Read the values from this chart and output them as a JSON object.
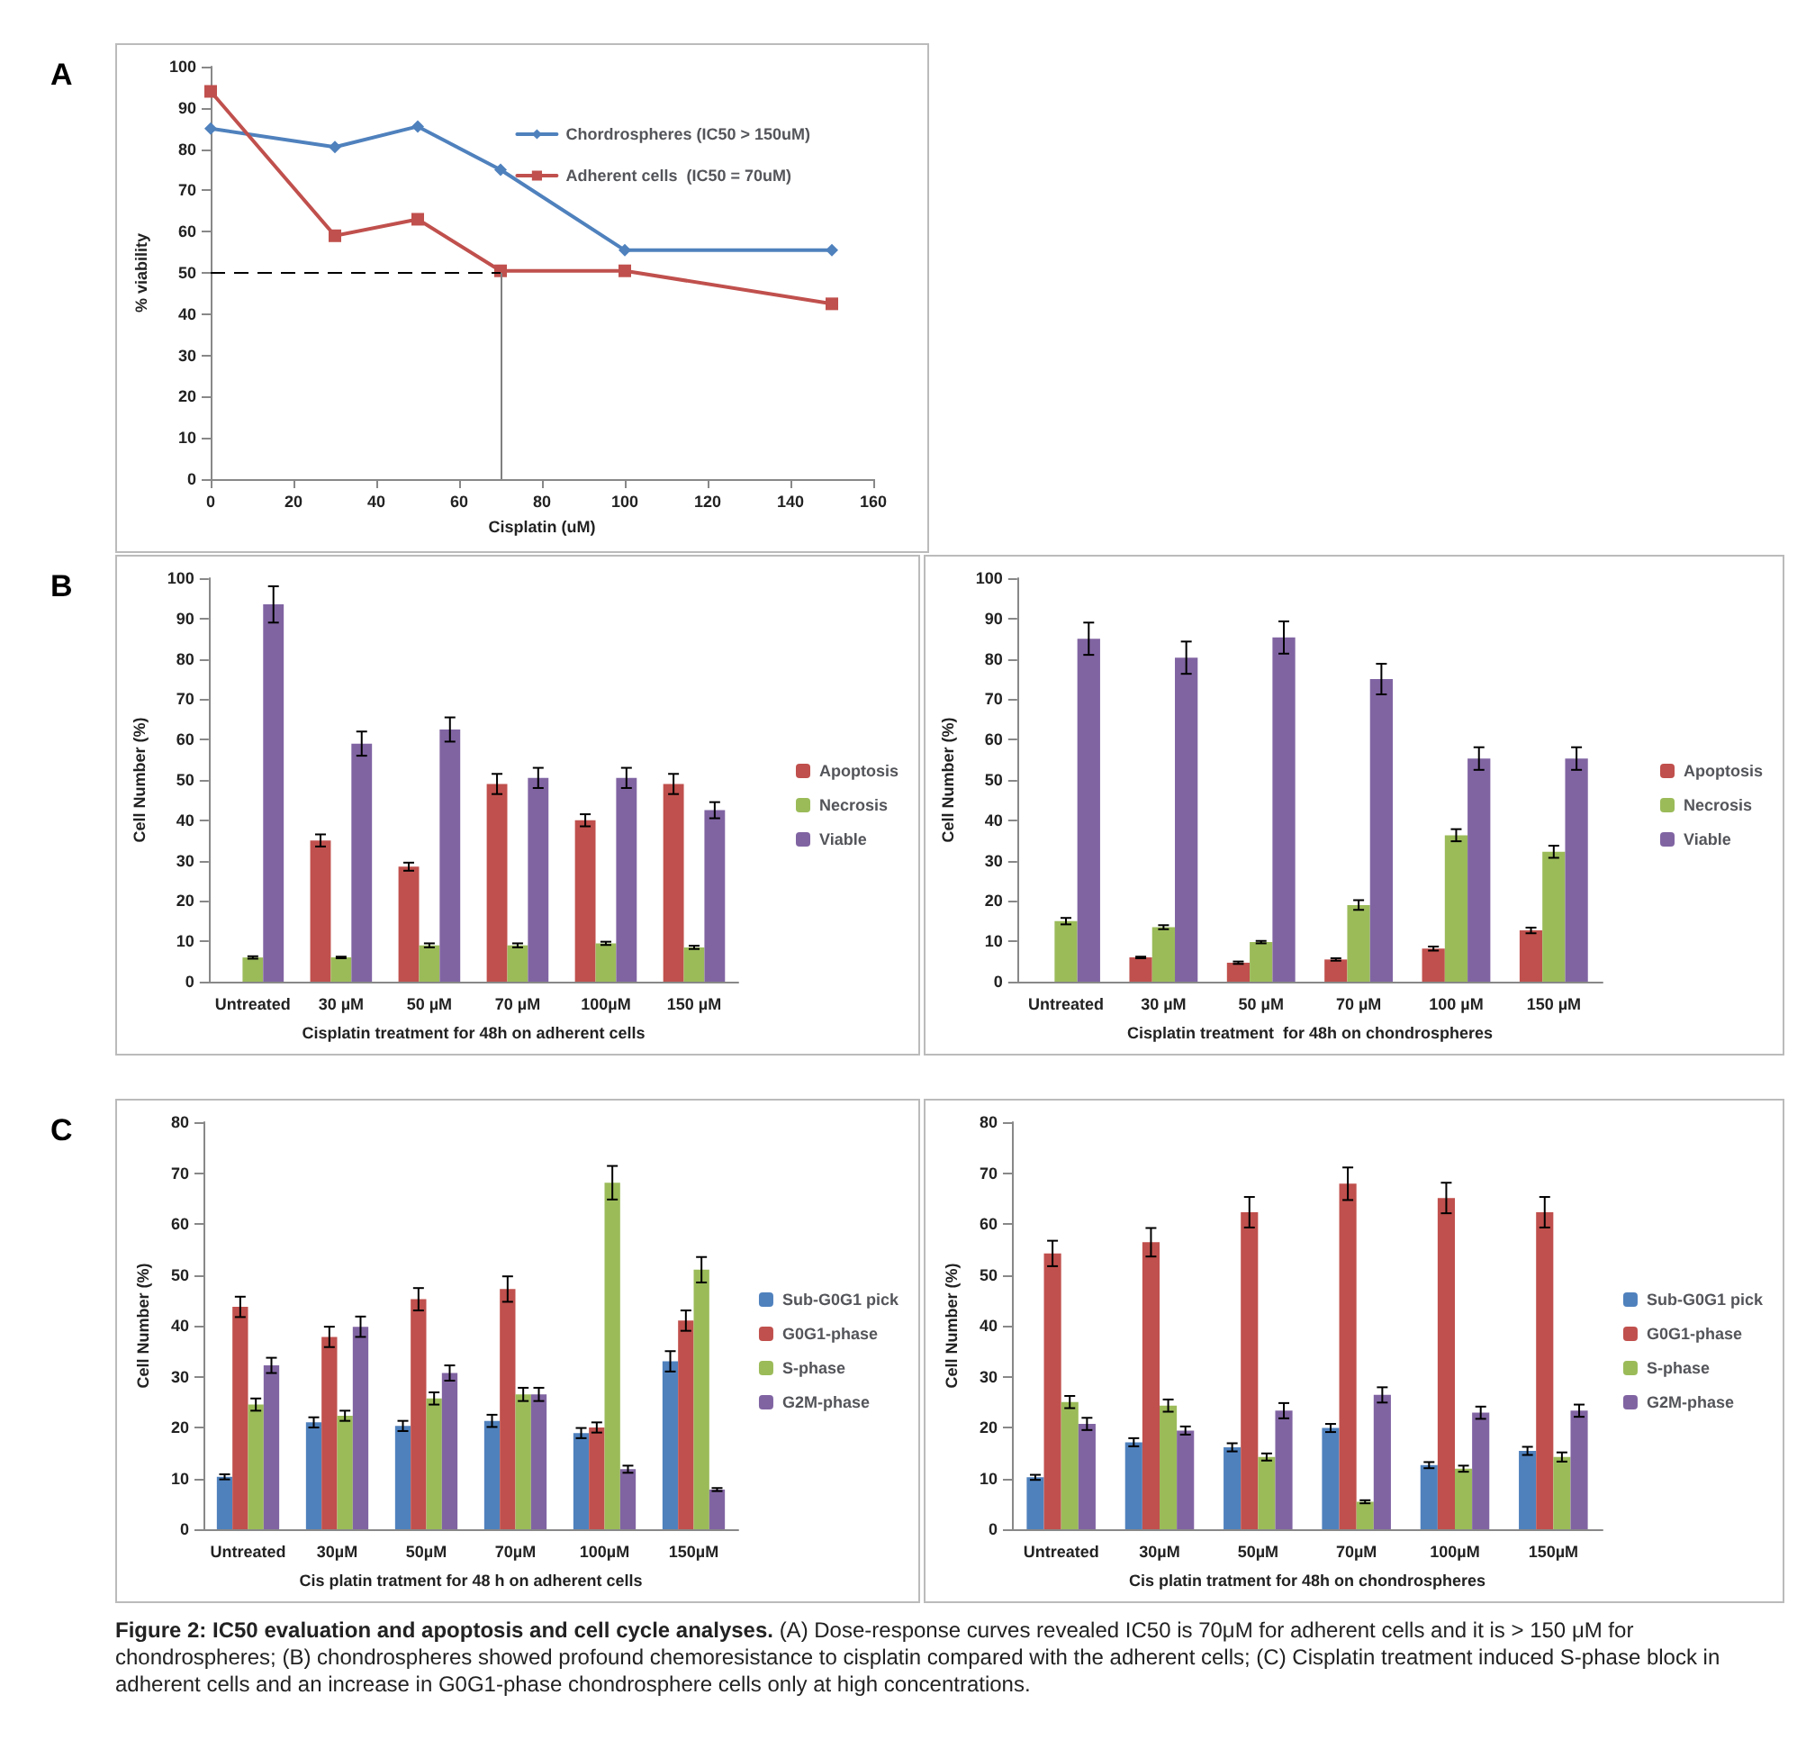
{
  "chart_data": [
    {
      "type": "line",
      "title": "A",
      "xlabel": "Cisplatin (uM)",
      "ylabel": "% viability",
      "x": [
        0,
        30,
        50,
        70,
        100,
        150
      ],
      "xlim": [
        0,
        160
      ],
      "xticks": [
        0,
        20,
        40,
        60,
        80,
        100,
        120,
        140,
        160
      ],
      "ylim": [
        0,
        100
      ],
      "yticks": [
        0,
        10,
        20,
        30,
        40,
        50,
        60,
        70,
        80,
        90,
        100
      ],
      "grid": false,
      "legend": "top right",
      "line_style": "solid",
      "series": [
        {
          "name": "Chordrospheres (IC50 > 150uM)",
          "color": "#4f81bd",
          "marker": "diamond",
          "values": [
            85,
            80.5,
            85.5,
            75,
            55.5,
            55.5
          ]
        },
        {
          "name": "Adherent cells  (IC50 = 70uM)",
          "color": "#c0504d",
          "marker": "square",
          "values": [
            94,
            59,
            63,
            50.5,
            50.5,
            42.5
          ]
        }
      ],
      "ref_lines": [
        {
          "axis": "y",
          "value": 50,
          "color": "#000000",
          "line_style": "dashed"
        },
        {
          "axis": "x",
          "value": 70,
          "color": "#808080",
          "line_style": "solid"
        }
      ]
    },
    {
      "type": "bar",
      "title": "B",
      "xlabel": "Cisplatin treatment for 48h on adherent cells",
      "ylabel": "Cell Number (%)",
      "categories": [
        "Untreated",
        "30 µM",
        "50 µM",
        "70 µM",
        "100µM",
        "150 µM"
      ],
      "ylim": [
        0,
        100
      ],
      "yticks": [
        0,
        10,
        20,
        30,
        40,
        50,
        60,
        70,
        80,
        90,
        100
      ],
      "grid": false,
      "legend": "right",
      "series": [
        {
          "name": "Apoptosis",
          "color": "#c0504d",
          "values": [
            null,
            35,
            28.5,
            49,
            40,
            49
          ],
          "errors": [
            null,
            1.5,
            1,
            2.5,
            1.5,
            2.5
          ]
        },
        {
          "name": "Necrosis",
          "color": "#9bbb59",
          "values": [
            6,
            6,
            9,
            9,
            9.5,
            8.5
          ],
          "errors": [
            0.3,
            0.2,
            0.5,
            0.5,
            0.4,
            0.4
          ]
        },
        {
          "name": "Viable",
          "color": "#8064a2",
          "values": [
            93.5,
            59,
            62.5,
            50.5,
            50.5,
            42.5
          ],
          "errors": [
            4.5,
            3,
            3,
            2.5,
            2.5,
            2
          ]
        }
      ]
    },
    {
      "type": "bar",
      "xlabel": "Cisplatin treatment  for 48h on chondrospheres",
      "ylabel": "Cell Number (%)",
      "categories": [
        "Untreated",
        "30 µM",
        "50 µM",
        "70 µM",
        "100 µM",
        "150 µM"
      ],
      "ylim": [
        0,
        100
      ],
      "yticks": [
        0,
        10,
        20,
        30,
        40,
        50,
        60,
        70,
        80,
        90,
        100
      ],
      "grid": false,
      "legend": "right",
      "series": [
        {
          "name": "Apoptosis",
          "color": "#c0504d",
          "values": [
            null,
            6,
            4.7,
            5.5,
            8.2,
            12.7
          ],
          "errors": [
            null,
            0.2,
            0.3,
            0.3,
            0.5,
            0.7
          ]
        },
        {
          "name": "Necrosis",
          "color": "#9bbb59",
          "values": [
            15,
            13.5,
            9.8,
            19,
            36.3,
            32.2
          ],
          "errors": [
            0.8,
            0.5,
            0.3,
            1.2,
            1.5,
            1.5
          ]
        },
        {
          "name": "Viable",
          "color": "#8064a2",
          "values": [
            85,
            80.3,
            85.3,
            75,
            55.3,
            55.3
          ],
          "errors": [
            4,
            4,
            4,
            3.8,
            2.8,
            2.8
          ]
        }
      ]
    },
    {
      "type": "bar",
      "title": "C",
      "xlabel": "Cis platin tratment for 48 h on adherent cells",
      "ylabel": "Cell Number (%)",
      "categories": [
        "Untreated",
        "30µM",
        "50µM",
        "70µM",
        "100µM",
        "150µM"
      ],
      "ylim": [
        0,
        80
      ],
      "yticks": [
        0,
        10,
        20,
        30,
        40,
        50,
        60,
        70,
        80
      ],
      "grid": false,
      "legend": "right",
      "series": [
        {
          "name": "Sub-G0G1 pick",
          "color": "#4f81bd",
          "values": [
            10.3,
            21,
            20.3,
            21.3,
            18.9,
            33
          ],
          "errors": [
            0.5,
            1,
            1,
            1.2,
            1,
            2
          ]
        },
        {
          "name": "G0G1-phase",
          "color": "#c0504d",
          "values": [
            43.7,
            37.8,
            45.2,
            47.2,
            20,
            41
          ],
          "errors": [
            2,
            2,
            2.2,
            2.5,
            1,
            2
          ]
        },
        {
          "name": "S-phase",
          "color": "#9bbb59",
          "values": [
            24.5,
            22.3,
            25.7,
            26.5,
            68.1,
            51
          ],
          "errors": [
            1.2,
            1,
            1.2,
            1.3,
            3.3,
            2.5
          ]
        },
        {
          "name": "G2M-phase",
          "color": "#8064a2",
          "values": [
            32.2,
            39.8,
            30.7,
            26.5,
            11.8,
            7.8
          ],
          "errors": [
            1.5,
            2,
            1.5,
            1.3,
            0.7,
            0.3
          ]
        }
      ]
    },
    {
      "type": "bar",
      "xlabel": "Cis platin tratment for 48h on chondrospheres",
      "ylabel": "Cell Number (%)",
      "categories": [
        "Untreated",
        "30µM",
        "50µM",
        "70µM",
        "100µM",
        "150µM"
      ],
      "ylim": [
        0,
        80
      ],
      "yticks": [
        0,
        10,
        20,
        30,
        40,
        50,
        60,
        70,
        80
      ],
      "grid": false,
      "legend": "right",
      "series": [
        {
          "name": "Sub-G0G1 pick",
          "color": "#4f81bd",
          "values": [
            10.2,
            17.1,
            16.1,
            19.9,
            12.6,
            15.4
          ],
          "errors": [
            0.5,
            0.8,
            0.8,
            0.8,
            0.6,
            0.8
          ]
        },
        {
          "name": "G0G1-phase",
          "color": "#c0504d",
          "values": [
            54.2,
            56.4,
            62.3,
            67.9,
            65.1,
            62.3
          ],
          "errors": [
            2.5,
            2.8,
            3,
            3.2,
            3,
            3
          ]
        },
        {
          "name": "S-phase",
          "color": "#9bbb59",
          "values": [
            25,
            24.3,
            14.2,
            5.4,
            11.9,
            14.2
          ],
          "errors": [
            1.2,
            1.2,
            0.7,
            0.3,
            0.6,
            0.9
          ]
        },
        {
          "name": "G2M-phase",
          "color": "#8064a2",
          "values": [
            20.7,
            19.4,
            23.3,
            26.4,
            22.9,
            23.3
          ],
          "errors": [
            1.2,
            0.8,
            1.5,
            1.5,
            1.2,
            1.2
          ]
        }
      ],
      "annotations": [
        "Figure 2: IC50 evaluation and apoptosis and cell cycle analyses.",
        "(A) Dose-response curves revealed IC50 is 70μM for adherent cells and it is > 150 μM for chondrospheres; (B) chondrospheres showed profound chemoresistance to cisplatin compared with the adherent cells; (C) Cisplatin treatment induced S-phase block in adherent cells and an increase in G0G1-phase chondrosphere cells only at high concentrations."
      ]
    }
  ]
}
